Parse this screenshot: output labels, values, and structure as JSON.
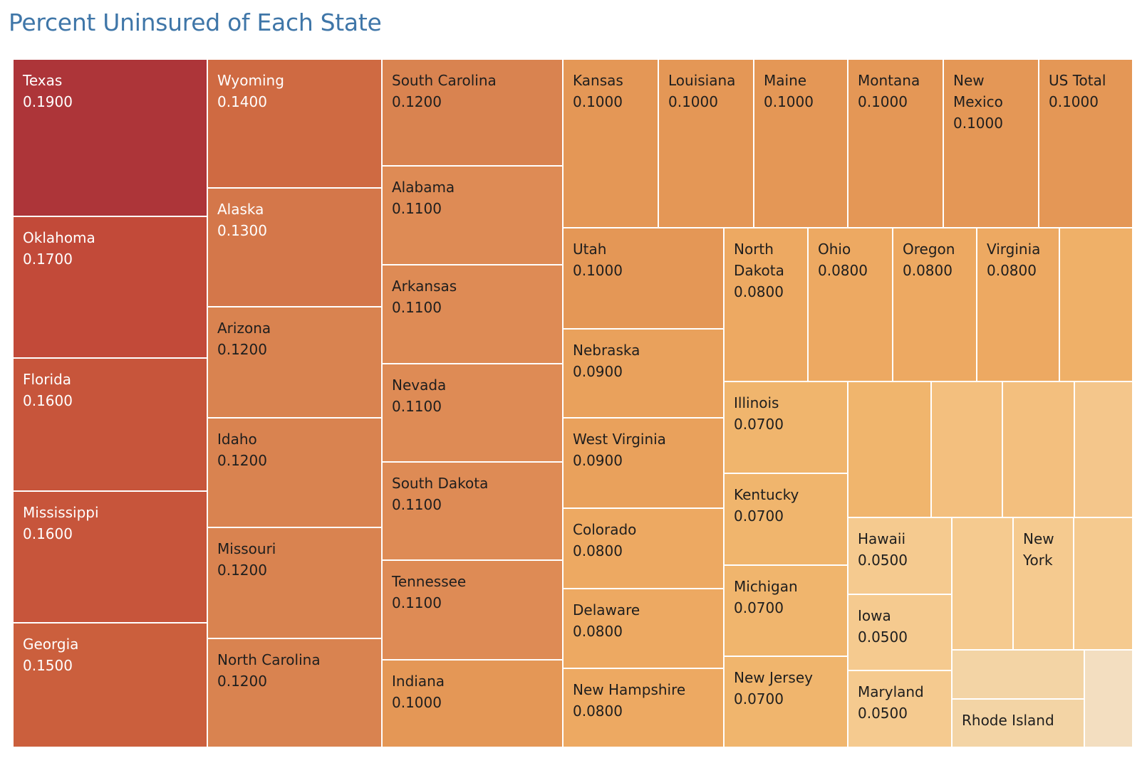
{
  "chart_data": {
    "type": "treemap",
    "title": "Percent Uninsured of Each State",
    "measure": "Percent Uninsured",
    "value_format": "0.0000",
    "color_scale": {
      "low": "#f2dfc4",
      "mid": "#e9a15c",
      "high": "#ad3539"
    },
    "cells": [
      {
        "name": "Texas",
        "value": 0.19,
        "label": "Texas",
        "value_text": "0.1900",
        "color": "#ad3539",
        "text": "light"
      },
      {
        "name": "Oklahoma",
        "value": 0.17,
        "label": "Oklahoma",
        "value_text": "0.1700",
        "color": "#c24a39",
        "text": "light"
      },
      {
        "name": "Florida",
        "value": 0.16,
        "label": "Florida",
        "value_text": "0.1600",
        "color": "#c7553b",
        "text": "light"
      },
      {
        "name": "Mississippi",
        "value": 0.16,
        "label": "Mississippi",
        "value_text": "0.1600",
        "color": "#c7553b",
        "text": "light"
      },
      {
        "name": "Georgia",
        "value": 0.15,
        "label": "Georgia",
        "value_text": "0.1500",
        "color": "#cb5f3d",
        "text": "light"
      },
      {
        "name": "Wyoming",
        "value": 0.14,
        "label": "Wyoming",
        "value_text": "0.1400",
        "color": "#cf6a42",
        "text": "light"
      },
      {
        "name": "Alaska",
        "value": 0.13,
        "label": "Alaska",
        "value_text": "0.1300",
        "color": "#d4774a",
        "text": "light"
      },
      {
        "name": "Arizona",
        "value": 0.12,
        "label": "Arizona",
        "value_text": "0.1200",
        "color": "#d98350",
        "text": "dark"
      },
      {
        "name": "Idaho",
        "value": 0.12,
        "label": "Idaho",
        "value_text": "0.1200",
        "color": "#d98350",
        "text": "dark"
      },
      {
        "name": "Missouri",
        "value": 0.12,
        "label": "Missouri",
        "value_text": "0.1200",
        "color": "#d98350",
        "text": "dark"
      },
      {
        "name": "North Carolina",
        "value": 0.12,
        "label": "North Carolina",
        "value_text": "0.1200",
        "color": "#d98350",
        "text": "dark"
      },
      {
        "name": "South Carolina",
        "value": 0.12,
        "label": "South Carolina",
        "value_text": "0.1200",
        "color": "#d98350",
        "text": "dark"
      },
      {
        "name": "Alabama",
        "value": 0.11,
        "label": "Alabama",
        "value_text": "0.1100",
        "color": "#de8b55",
        "text": "dark"
      },
      {
        "name": "Arkansas",
        "value": 0.11,
        "label": "Arkansas",
        "value_text": "0.1100",
        "color": "#de8b55",
        "text": "dark"
      },
      {
        "name": "Nevada",
        "value": 0.11,
        "label": "Nevada",
        "value_text": "0.1100",
        "color": "#de8b55",
        "text": "dark"
      },
      {
        "name": "South Dakota",
        "value": 0.11,
        "label": "South Dakota",
        "value_text": "0.1100",
        "color": "#de8b55",
        "text": "dark"
      },
      {
        "name": "Tennessee",
        "value": 0.11,
        "label": "Tennessee",
        "value_text": "0.1100",
        "color": "#de8b55",
        "text": "dark"
      },
      {
        "name": "Indiana",
        "value": 0.1,
        "label": "Indiana",
        "value_text": "0.1000",
        "color": "#e49756",
        "text": "dark"
      },
      {
        "name": "Kansas",
        "value": 0.1,
        "label": "Kansas",
        "value_text": "0.1000",
        "color": "#e49756",
        "text": "dark"
      },
      {
        "name": "Louisiana",
        "value": 0.1,
        "label": "Louisiana",
        "value_text": "0.1000",
        "color": "#e49756",
        "text": "dark"
      },
      {
        "name": "Maine",
        "value": 0.1,
        "label": "Maine",
        "value_text": "0.1000",
        "color": "#e49756",
        "text": "dark"
      },
      {
        "name": "Montana",
        "value": 0.1,
        "label": "Montana",
        "value_text": "0.1000",
        "color": "#e49756",
        "text": "dark"
      },
      {
        "name": "New Mexico",
        "value": 0.1,
        "label": "New\nMexico",
        "value_text": "0.1000",
        "color": "#e49756",
        "text": "dark"
      },
      {
        "name": "US Total",
        "value": 0.1,
        "label": "US Total",
        "value_text": "0.1000",
        "color": "#e49756",
        "text": "dark"
      },
      {
        "name": "Utah",
        "value": 0.1,
        "label": "Utah",
        "value_text": "0.1000",
        "color": "#e49756",
        "text": "dark"
      },
      {
        "name": "Nebraska",
        "value": 0.09,
        "label": "Nebraska",
        "value_text": "0.0900",
        "color": "#e9a15c",
        "text": "dark"
      },
      {
        "name": "West Virginia",
        "value": 0.09,
        "label": "West Virginia",
        "value_text": "0.0900",
        "color": "#e9a15c",
        "text": "dark"
      },
      {
        "name": "Colorado",
        "value": 0.08,
        "label": "Colorado",
        "value_text": "0.0800",
        "color": "#eda962",
        "text": "dark"
      },
      {
        "name": "Delaware",
        "value": 0.08,
        "label": "Delaware",
        "value_text": "0.0800",
        "color": "#eda962",
        "text": "dark"
      },
      {
        "name": "New Hampshire",
        "value": 0.08,
        "label": "New Hampshire",
        "value_text": "0.0800",
        "color": "#eda962",
        "text": "dark"
      },
      {
        "name": "North Dakota",
        "value": 0.08,
        "label": "North\nDakota",
        "value_text": "0.0800",
        "color": "#eda962",
        "text": "dark"
      },
      {
        "name": "Ohio",
        "value": 0.08,
        "label": "Ohio",
        "value_text": "0.0800",
        "color": "#eda962",
        "text": "dark"
      },
      {
        "name": "Oregon",
        "value": 0.08,
        "label": "Oregon",
        "value_text": "0.0800",
        "color": "#eda962",
        "text": "dark"
      },
      {
        "name": "Virginia",
        "value": 0.08,
        "label": "Virginia",
        "value_text": "0.0800",
        "color": "#eda962",
        "text": "dark"
      },
      {
        "name": "",
        "value": 0.08,
        "label": "",
        "value_text": "",
        "color": "#efb068",
        "text": "dark"
      },
      {
        "name": "Illinois",
        "value": 0.07,
        "label": "Illinois",
        "value_text": "0.0700",
        "color": "#f0b56d",
        "text": "dark"
      },
      {
        "name": "Kentucky",
        "value": 0.07,
        "label": "Kentucky",
        "value_text": "0.0700",
        "color": "#f0b56d",
        "text": "dark"
      },
      {
        "name": "Michigan",
        "value": 0.07,
        "label": "Michigan",
        "value_text": "0.0700",
        "color": "#f0b56d",
        "text": "dark"
      },
      {
        "name": "New Jersey",
        "value": 0.07,
        "label": "New Jersey",
        "value_text": "0.0700",
        "color": "#f0b56d",
        "text": "dark"
      },
      {
        "name": "",
        "value": 0.07,
        "label": "",
        "value_text": "",
        "color": "#f0b56d",
        "text": "dark"
      },
      {
        "name": "",
        "value": 0.06,
        "label": "",
        "value_text": "",
        "color": "#f3bf7e",
        "text": "dark"
      },
      {
        "name": "",
        "value": 0.06,
        "label": "",
        "value_text": "",
        "color": "#f3bf7e",
        "text": "dark"
      },
      {
        "name": "",
        "value": 0.06,
        "label": "",
        "value_text": "",
        "color": "#f4c68b",
        "text": "dark"
      },
      {
        "name": "Hawaii",
        "value": 0.05,
        "label": "Hawaii",
        "value_text": "0.0500",
        "color": "#f5ca8f",
        "text": "dark"
      },
      {
        "name": "Iowa",
        "value": 0.05,
        "label": "Iowa",
        "value_text": "0.0500",
        "color": "#f5ca8f",
        "text": "dark"
      },
      {
        "name": "Maryland",
        "value": 0.05,
        "label": "Maryland",
        "value_text": "0.0500",
        "color": "#f5ca8f",
        "text": "dark"
      },
      {
        "name": "",
        "value": 0.05,
        "label": "",
        "value_text": "",
        "color": "#f5ca8f",
        "text": "dark"
      },
      {
        "name": "New York",
        "value": 0.05,
        "label": "New\nYork",
        "value_text": "",
        "color": "#f5ca8f",
        "text": "dark"
      },
      {
        "name": "",
        "value": 0.05,
        "label": "",
        "value_text": "",
        "color": "#f5ca8f",
        "text": "dark"
      },
      {
        "name": "",
        "value": 0.04,
        "label": "",
        "value_text": "",
        "color": "#f3d4a5",
        "text": "dark"
      },
      {
        "name": "Rhode Island",
        "value": 0.04,
        "label": "Rhode Island",
        "value_text": "",
        "color": "#f3d4a5",
        "text": "dark"
      },
      {
        "name": "",
        "value": 0.03,
        "label": "",
        "value_text": "",
        "color": "#f3dec0",
        "text": "dark"
      }
    ]
  }
}
